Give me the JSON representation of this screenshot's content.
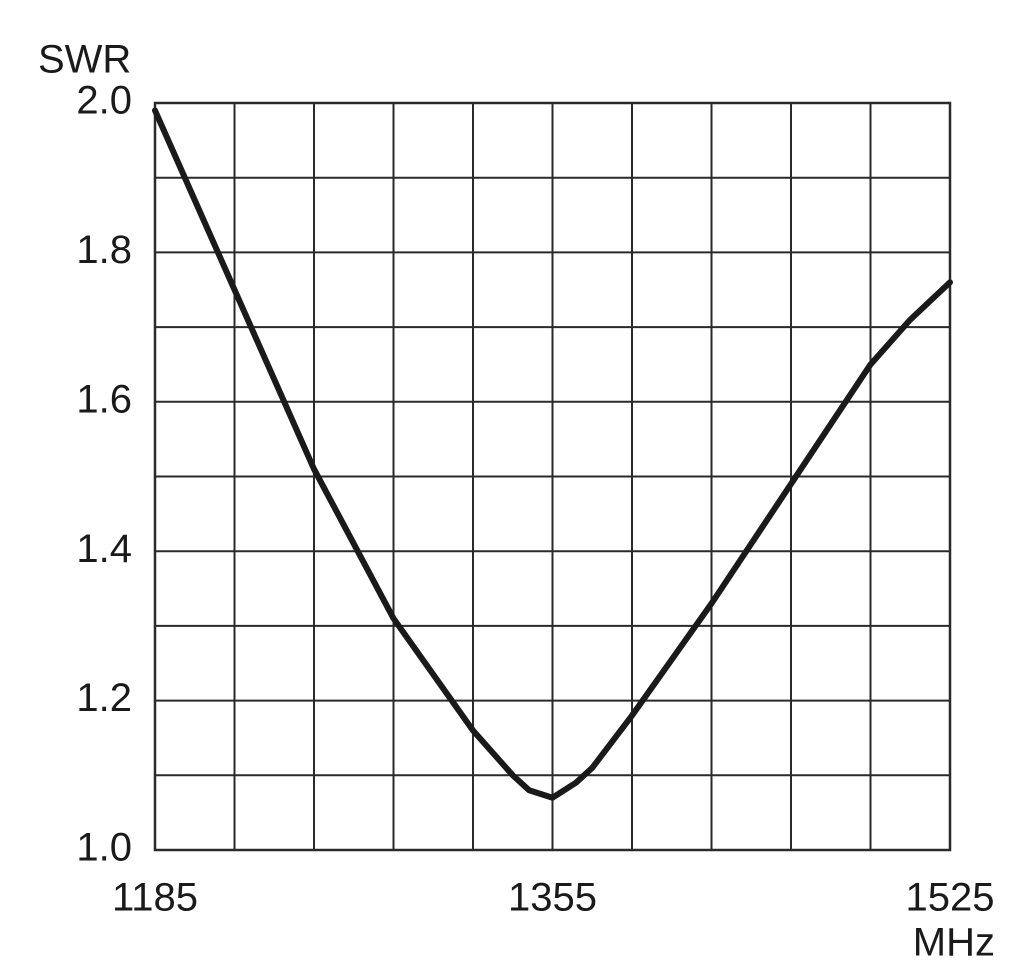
{
  "chart_data": {
    "type": "line",
    "ylabel": "SWR",
    "xlabel": "MHz",
    "x": [
      1185,
      1202,
      1219,
      1253,
      1287,
      1321,
      1338,
      1345,
      1355,
      1365,
      1372,
      1389,
      1423,
      1457,
      1491,
      1508,
      1525
    ],
    "series": [
      {
        "color": "#1a1a1a",
        "values": [
          1.99,
          1.87,
          1.75,
          1.51,
          1.31,
          1.16,
          1.1,
          1.08,
          1.07,
          1.09,
          1.11,
          1.18,
          1.33,
          1.49,
          1.65,
          1.71,
          1.76
        ]
      }
    ],
    "xlim": [
      1185,
      1525
    ],
    "xticks": [
      1185,
      1355,
      1525
    ],
    "xminorticks": [
      1219,
      1253,
      1287,
      1321,
      1389,
      1423,
      1457,
      1491
    ],
    "ylim": [
      1.0,
      2.0
    ],
    "yticks": [
      {
        "value": 1,
        "label": "1.0"
      },
      1.2,
      1.4,
      1.6,
      1.8,
      {
        "value": 2,
        "label": "2.0"
      }
    ],
    "yminorticks": [
      1.1,
      1.3,
      1.5,
      1.7,
      1.9
    ],
    "grid": true
  }
}
